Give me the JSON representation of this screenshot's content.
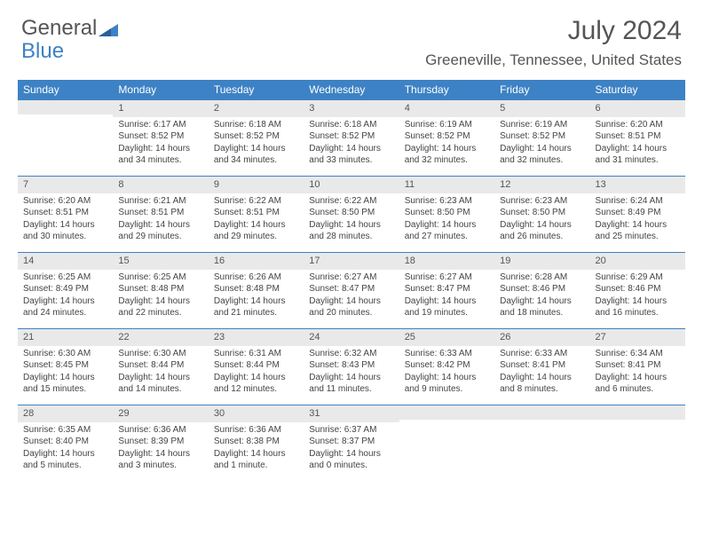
{
  "brand": {
    "part1": "General",
    "part2": "Blue"
  },
  "title": "July 2024",
  "location": "Greeneville, Tennessee, United States",
  "colors": {
    "header_bg": "#3d82c4",
    "header_text": "#ffffff",
    "daynum_bg": "#e9e9e9",
    "border": "#3d82c4",
    "text": "#444444",
    "title_text": "#555555"
  },
  "day_headers": [
    "Sunday",
    "Monday",
    "Tuesday",
    "Wednesday",
    "Thursday",
    "Friday",
    "Saturday"
  ],
  "weeks": [
    [
      {
        "num": "",
        "lines": []
      },
      {
        "num": "1",
        "lines": [
          "Sunrise: 6:17 AM",
          "Sunset: 8:52 PM",
          "Daylight: 14 hours",
          "and 34 minutes."
        ]
      },
      {
        "num": "2",
        "lines": [
          "Sunrise: 6:18 AM",
          "Sunset: 8:52 PM",
          "Daylight: 14 hours",
          "and 34 minutes."
        ]
      },
      {
        "num": "3",
        "lines": [
          "Sunrise: 6:18 AM",
          "Sunset: 8:52 PM",
          "Daylight: 14 hours",
          "and 33 minutes."
        ]
      },
      {
        "num": "4",
        "lines": [
          "Sunrise: 6:19 AM",
          "Sunset: 8:52 PM",
          "Daylight: 14 hours",
          "and 32 minutes."
        ]
      },
      {
        "num": "5",
        "lines": [
          "Sunrise: 6:19 AM",
          "Sunset: 8:52 PM",
          "Daylight: 14 hours",
          "and 32 minutes."
        ]
      },
      {
        "num": "6",
        "lines": [
          "Sunrise: 6:20 AM",
          "Sunset: 8:51 PM",
          "Daylight: 14 hours",
          "and 31 minutes."
        ]
      }
    ],
    [
      {
        "num": "7",
        "lines": [
          "Sunrise: 6:20 AM",
          "Sunset: 8:51 PM",
          "Daylight: 14 hours",
          "and 30 minutes."
        ]
      },
      {
        "num": "8",
        "lines": [
          "Sunrise: 6:21 AM",
          "Sunset: 8:51 PM",
          "Daylight: 14 hours",
          "and 29 minutes."
        ]
      },
      {
        "num": "9",
        "lines": [
          "Sunrise: 6:22 AM",
          "Sunset: 8:51 PM",
          "Daylight: 14 hours",
          "and 29 minutes."
        ]
      },
      {
        "num": "10",
        "lines": [
          "Sunrise: 6:22 AM",
          "Sunset: 8:50 PM",
          "Daylight: 14 hours",
          "and 28 minutes."
        ]
      },
      {
        "num": "11",
        "lines": [
          "Sunrise: 6:23 AM",
          "Sunset: 8:50 PM",
          "Daylight: 14 hours",
          "and 27 minutes."
        ]
      },
      {
        "num": "12",
        "lines": [
          "Sunrise: 6:23 AM",
          "Sunset: 8:50 PM",
          "Daylight: 14 hours",
          "and 26 minutes."
        ]
      },
      {
        "num": "13",
        "lines": [
          "Sunrise: 6:24 AM",
          "Sunset: 8:49 PM",
          "Daylight: 14 hours",
          "and 25 minutes."
        ]
      }
    ],
    [
      {
        "num": "14",
        "lines": [
          "Sunrise: 6:25 AM",
          "Sunset: 8:49 PM",
          "Daylight: 14 hours",
          "and 24 minutes."
        ]
      },
      {
        "num": "15",
        "lines": [
          "Sunrise: 6:25 AM",
          "Sunset: 8:48 PM",
          "Daylight: 14 hours",
          "and 22 minutes."
        ]
      },
      {
        "num": "16",
        "lines": [
          "Sunrise: 6:26 AM",
          "Sunset: 8:48 PM",
          "Daylight: 14 hours",
          "and 21 minutes."
        ]
      },
      {
        "num": "17",
        "lines": [
          "Sunrise: 6:27 AM",
          "Sunset: 8:47 PM",
          "Daylight: 14 hours",
          "and 20 minutes."
        ]
      },
      {
        "num": "18",
        "lines": [
          "Sunrise: 6:27 AM",
          "Sunset: 8:47 PM",
          "Daylight: 14 hours",
          "and 19 minutes."
        ]
      },
      {
        "num": "19",
        "lines": [
          "Sunrise: 6:28 AM",
          "Sunset: 8:46 PM",
          "Daylight: 14 hours",
          "and 18 minutes."
        ]
      },
      {
        "num": "20",
        "lines": [
          "Sunrise: 6:29 AM",
          "Sunset: 8:46 PM",
          "Daylight: 14 hours",
          "and 16 minutes."
        ]
      }
    ],
    [
      {
        "num": "21",
        "lines": [
          "Sunrise: 6:30 AM",
          "Sunset: 8:45 PM",
          "Daylight: 14 hours",
          "and 15 minutes."
        ]
      },
      {
        "num": "22",
        "lines": [
          "Sunrise: 6:30 AM",
          "Sunset: 8:44 PM",
          "Daylight: 14 hours",
          "and 14 minutes."
        ]
      },
      {
        "num": "23",
        "lines": [
          "Sunrise: 6:31 AM",
          "Sunset: 8:44 PM",
          "Daylight: 14 hours",
          "and 12 minutes."
        ]
      },
      {
        "num": "24",
        "lines": [
          "Sunrise: 6:32 AM",
          "Sunset: 8:43 PM",
          "Daylight: 14 hours",
          "and 11 minutes."
        ]
      },
      {
        "num": "25",
        "lines": [
          "Sunrise: 6:33 AM",
          "Sunset: 8:42 PM",
          "Daylight: 14 hours",
          "and 9 minutes."
        ]
      },
      {
        "num": "26",
        "lines": [
          "Sunrise: 6:33 AM",
          "Sunset: 8:41 PM",
          "Daylight: 14 hours",
          "and 8 minutes."
        ]
      },
      {
        "num": "27",
        "lines": [
          "Sunrise: 6:34 AM",
          "Sunset: 8:41 PM",
          "Daylight: 14 hours",
          "and 6 minutes."
        ]
      }
    ],
    [
      {
        "num": "28",
        "lines": [
          "Sunrise: 6:35 AM",
          "Sunset: 8:40 PM",
          "Daylight: 14 hours",
          "and 5 minutes."
        ]
      },
      {
        "num": "29",
        "lines": [
          "Sunrise: 6:36 AM",
          "Sunset: 8:39 PM",
          "Daylight: 14 hours",
          "and 3 minutes."
        ]
      },
      {
        "num": "30",
        "lines": [
          "Sunrise: 6:36 AM",
          "Sunset: 8:38 PM",
          "Daylight: 14 hours",
          "and 1 minute."
        ]
      },
      {
        "num": "31",
        "lines": [
          "Sunrise: 6:37 AM",
          "Sunset: 8:37 PM",
          "Daylight: 14 hours",
          "and 0 minutes."
        ]
      },
      {
        "num": "",
        "lines": []
      },
      {
        "num": "",
        "lines": []
      },
      {
        "num": "",
        "lines": []
      }
    ]
  ]
}
